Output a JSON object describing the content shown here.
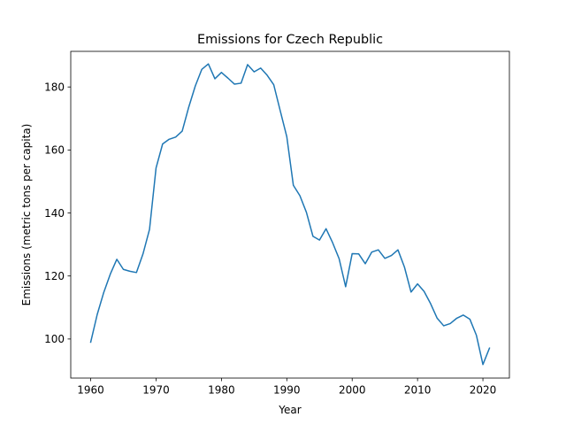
{
  "chart_data": {
    "type": "line",
    "title": "Emissions for Czech Republic",
    "xlabel": "Year",
    "ylabel": "Emissions (metric tons per capita)",
    "xlim": [
      1956.95,
      2024.05
    ],
    "ylim": [
      87.6,
      191.3
    ],
    "xticks": [
      1960,
      1970,
      1980,
      1990,
      2000,
      2010,
      2020
    ],
    "yticks": [
      100,
      120,
      140,
      160,
      180
    ],
    "grid": false,
    "line_color": "#1f77b4",
    "series": [
      {
        "x": [
          1960,
          1961,
          1962,
          1963,
          1964,
          1965,
          1966,
          1967,
          1968,
          1969,
          1970,
          1971,
          1972,
          1973,
          1974,
          1975,
          1976,
          1977,
          1978,
          1979,
          1980,
          1981,
          1982,
          1983,
          1984,
          1985,
          1986,
          1987,
          1988,
          1989,
          1990,
          1991,
          1992,
          1993,
          1994,
          1995,
          1996,
          1997,
          1998,
          1999,
          2000,
          2001,
          2002,
          2003,
          2004,
          2005,
          2006,
          2007,
          2008,
          2009,
          2010,
          2011,
          2012,
          2013,
          2014,
          2015,
          2016,
          2017,
          2018,
          2019,
          2020,
          2021
        ],
        "values": [
          99.0,
          107.8,
          114.8,
          120.6,
          125.3,
          122.1,
          121.5,
          121.1,
          127.0,
          134.8,
          154.3,
          161.9,
          163.4,
          164.1,
          166.0,
          173.6,
          180.3,
          185.6,
          187.3,
          182.6,
          184.6,
          182.8,
          180.9,
          181.2,
          187.1,
          184.8,
          186.0,
          183.7,
          180.7,
          172.4,
          164.2,
          148.8,
          145.5,
          140.2,
          132.6,
          131.4,
          135.0,
          130.6,
          125.5,
          116.6,
          127.1,
          127.0,
          123.9,
          127.6,
          128.3,
          125.6,
          126.5,
          128.3,
          122.8,
          114.9,
          117.5,
          115.1,
          111.2,
          106.6,
          104.2,
          104.9,
          106.6,
          107.6,
          106.3,
          101.2,
          91.9,
          97.1
        ]
      }
    ]
  }
}
